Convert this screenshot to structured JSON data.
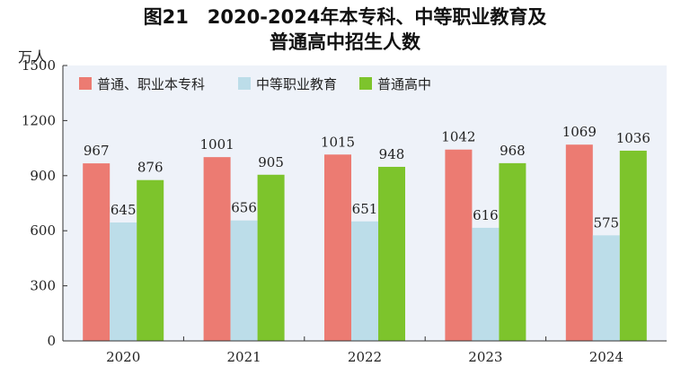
{
  "chart_data": {
    "type": "bar",
    "title_line1": "图21　2020-2024年本专科、中等职业教育及",
    "title_line2": "普通高中招生人数",
    "unit": "万人",
    "categories": [
      "2020",
      "2021",
      "2022",
      "2023",
      "2024"
    ],
    "ylim": [
      0,
      1500
    ],
    "yticks": [
      "0",
      "300",
      "600",
      "900",
      "1200",
      "1500"
    ],
    "legend_position": "top-left",
    "series": [
      {
        "name": "普通、职业本专科",
        "color": "#ec7b72",
        "values": [
          967,
          1001,
          1015,
          1042,
          1069
        ],
        "labels": [
          "967",
          "1001",
          "1015",
          "1042",
          "1069"
        ]
      },
      {
        "name": "中等职业教育",
        "color": "#bcdde9",
        "values": [
          645,
          656,
          651,
          616,
          575
        ],
        "labels": [
          "645",
          "656",
          "651",
          "616",
          "575"
        ]
      },
      {
        "name": "普通高中",
        "color": "#7dc42c",
        "values": [
          876,
          905,
          948,
          968,
          1036
        ],
        "labels": [
          "876",
          "905",
          "948",
          "968",
          "1036"
        ]
      }
    ],
    "background_color": "#eef2f9",
    "grid": false
  }
}
